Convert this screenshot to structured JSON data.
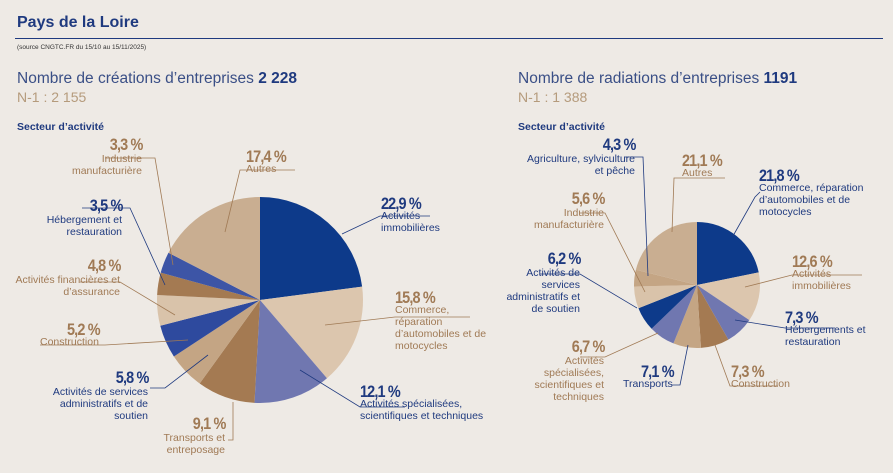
{
  "header": {
    "title": "Pays de la Loire",
    "source": "(source CNGTC.FR du 15/10 au 15/11/2025)"
  },
  "colors": {
    "navy": "#0d3a8a",
    "beige": "#dcc6ae",
    "periwinkle": "#7077b0",
    "brown": "#a47a52",
    "tan": "#c4a584",
    "blue": "#3350a0",
    "light": "#d9c3aa",
    "autres": "#c9ae91"
  },
  "chart_data": [
    {
      "type": "pie",
      "title": "Nombre de créations d’entreprises",
      "total": "2 228",
      "previous": "N-1 : 2 155",
      "subtitle": "Secteur d’activité",
      "slices": [
        {
          "label": "Activités immobilières",
          "value": 22.9,
          "pct": "22,9 %",
          "color": "#0d3a8a"
        },
        {
          "label": "Commerce, réparation d’automobiles et de motocycles",
          "value": 15.8,
          "pct": "15,8 %",
          "color": "#dcc6ae"
        },
        {
          "label": "Activités spécialisées, scientifiques et techniques",
          "value": 12.1,
          "pct": "12,1 %",
          "color": "#7077b0"
        },
        {
          "label": "Transports et entreposage",
          "value": 9.1,
          "pct": "9,1 %",
          "color": "#a47a52"
        },
        {
          "label": "Activités de services administratifs et de soutien",
          "value": 5.8,
          "pct": "5,8 %",
          "color": "#c4a584"
        },
        {
          "label": "Construction",
          "value": 5.2,
          "pct": "5,2 %",
          "color": "#2e4a9e"
        },
        {
          "label": "Activités financières et d’assurance",
          "value": 4.8,
          "pct": "4,8 %",
          "color": "#d9c3aa"
        },
        {
          "label": "Hébergement et restauration",
          "value": 3.5,
          "pct": "3,5 %",
          "color": "#a47a52"
        },
        {
          "label": "Industrie manufacturière",
          "value": 3.3,
          "pct": "3,3 %",
          "color": "#3d55a6"
        },
        {
          "label": "Autres",
          "value": 17.4,
          "pct": "17,4 %",
          "color": "#c9ae91"
        }
      ]
    },
    {
      "type": "pie",
      "title": "Nombre de radiations d’entreprises",
      "total": "1191",
      "previous": "N-1 : 1 388",
      "subtitle": "Secteur d’activité",
      "slices": [
        {
          "label": "Commerce, réparation d’automobiles et de motocycles",
          "value": 21.8,
          "pct": "21,8 %",
          "color": "#0d3a8a"
        },
        {
          "label": "Activités immobilières",
          "value": 12.6,
          "pct": "12,6 %",
          "color": "#dcc6ae"
        },
        {
          "label": "Hébergements et restauration",
          "value": 7.3,
          "pct": "7,3 %",
          "color": "#7077b0"
        },
        {
          "label": "Construction",
          "value": 7.3,
          "pct": "7,3 %",
          "color": "#a47a52"
        },
        {
          "label": "Transports",
          "value": 7.1,
          "pct": "7,1 %",
          "color": "#c4a584"
        },
        {
          "label": "Activités spécialisées, scientifiques et techniques",
          "value": 6.7,
          "pct": "6,7 %",
          "color": "#7077b0"
        },
        {
          "label": "Activités de services administratifs et de soutien",
          "value": 6.2,
          "pct": "6,2 %",
          "color": "#0d3a8a"
        },
        {
          "label": "Industrie manufacturière",
          "value": 5.6,
          "pct": "5,6 %",
          "color": "#d9c3aa"
        },
        {
          "label": "Agriculture, sylviculture et pêche",
          "value": 4.3,
          "pct": "4,3 %",
          "color": "#c4a584"
        },
        {
          "label": "Autres",
          "value": 21.1,
          "pct": "21,1 %",
          "color": "#c9ae91"
        }
      ]
    }
  ]
}
